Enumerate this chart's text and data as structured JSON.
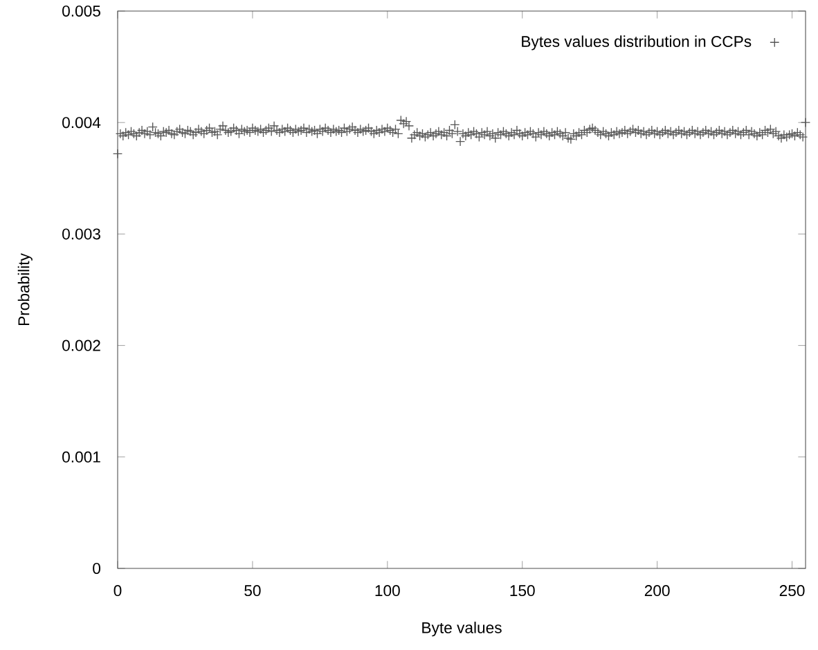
{
  "chart_data": {
    "type": "scatter",
    "xlabel": "Byte values",
    "ylabel": "Probability",
    "xlim": [
      0,
      255
    ],
    "ylim": [
      0,
      0.005
    ],
    "xticks": [
      0,
      50,
      100,
      150,
      200,
      250
    ],
    "yticks": [
      0,
      0.001,
      0.002,
      0.003,
      0.004,
      0.005
    ],
    "legend": "top right",
    "marker": "cross",
    "x": [
      0,
      1,
      2,
      3,
      4,
      5,
      6,
      7,
      8,
      9,
      10,
      11,
      12,
      13,
      14,
      15,
      16,
      17,
      18,
      19,
      20,
      21,
      22,
      23,
      24,
      25,
      26,
      27,
      28,
      29,
      30,
      31,
      32,
      33,
      34,
      35,
      36,
      37,
      38,
      39,
      40,
      41,
      42,
      43,
      44,
      45,
      46,
      47,
      48,
      49,
      50,
      51,
      52,
      53,
      54,
      55,
      56,
      57,
      58,
      59,
      60,
      61,
      62,
      63,
      64,
      65,
      66,
      67,
      68,
      69,
      70,
      71,
      72,
      73,
      74,
      75,
      76,
      77,
      78,
      79,
      80,
      81,
      82,
      83,
      84,
      85,
      86,
      87,
      88,
      89,
      90,
      91,
      92,
      93,
      94,
      95,
      96,
      97,
      98,
      99,
      100,
      101,
      102,
      103,
      104,
      105,
      106,
      107,
      108,
      109,
      110,
      111,
      112,
      113,
      114,
      115,
      116,
      117,
      118,
      119,
      120,
      121,
      122,
      123,
      124,
      125,
      126,
      127,
      128,
      129,
      130,
      131,
      132,
      133,
      134,
      135,
      136,
      137,
      138,
      139,
      140,
      141,
      142,
      143,
      144,
      145,
      146,
      147,
      148,
      149,
      150,
      151,
      152,
      153,
      154,
      155,
      156,
      157,
      158,
      159,
      160,
      161,
      162,
      163,
      164,
      165,
      166,
      167,
      168,
      169,
      170,
      171,
      172,
      173,
      174,
      175,
      176,
      177,
      178,
      179,
      180,
      181,
      182,
      183,
      184,
      185,
      186,
      187,
      188,
      189,
      190,
      191,
      192,
      193,
      194,
      195,
      196,
      197,
      198,
      199,
      200,
      201,
      202,
      203,
      204,
      205,
      206,
      207,
      208,
      209,
      210,
      211,
      212,
      213,
      214,
      215,
      216,
      217,
      218,
      219,
      220,
      221,
      222,
      223,
      224,
      225,
      226,
      227,
      228,
      229,
      230,
      231,
      232,
      233,
      234,
      235,
      236,
      237,
      238,
      239,
      240,
      241,
      242,
      243,
      244,
      245,
      246,
      247,
      248,
      249,
      250,
      251,
      252,
      253,
      254,
      255
    ],
    "series": [
      {
        "name": "Bytes values distribution in CCPs",
        "color": "#555555",
        "values": [
          0.00372,
          0.0039,
          0.00388,
          0.00391,
          0.00389,
          0.00392,
          0.0039,
          0.00388,
          0.00391,
          0.00393,
          0.0039,
          0.00392,
          0.00389,
          0.00396,
          0.00391,
          0.0039,
          0.00388,
          0.00392,
          0.00391,
          0.00393,
          0.0039,
          0.00389,
          0.00392,
          0.00394,
          0.00391,
          0.0039,
          0.00393,
          0.00392,
          0.00389,
          0.00391,
          0.00394,
          0.00392,
          0.0039,
          0.00393,
          0.00395,
          0.00391,
          0.00392,
          0.00389,
          0.00394,
          0.00397,
          0.00393,
          0.00391,
          0.00392,
          0.00395,
          0.00393,
          0.0039,
          0.00394,
          0.00392,
          0.00393,
          0.00391,
          0.00395,
          0.00393,
          0.00392,
          0.00394,
          0.00391,
          0.00393,
          0.00395,
          0.00392,
          0.00397,
          0.00393,
          0.00391,
          0.00394,
          0.00392,
          0.00395,
          0.00393,
          0.00391,
          0.00394,
          0.00392,
          0.00393,
          0.00395,
          0.00391,
          0.00394,
          0.00392,
          0.00393,
          0.0039,
          0.00394,
          0.00392,
          0.00395,
          0.00393,
          0.00391,
          0.00394,
          0.00392,
          0.00393,
          0.00391,
          0.00395,
          0.00392,
          0.00394,
          0.00396,
          0.00393,
          0.00391,
          0.00394,
          0.00392,
          0.00393,
          0.00395,
          0.00392,
          0.0039,
          0.00393,
          0.00391,
          0.00394,
          0.00392,
          0.00395,
          0.00393,
          0.00391,
          0.00394,
          0.0039,
          0.00402,
          0.00399,
          0.00401,
          0.00397,
          0.00386,
          0.00389,
          0.00391,
          0.00388,
          0.0039,
          0.00387,
          0.00389,
          0.00391,
          0.00388,
          0.0039,
          0.00392,
          0.00389,
          0.00391,
          0.00388,
          0.00393,
          0.0039,
          0.00398,
          0.00392,
          0.00383,
          0.0039,
          0.00388,
          0.00391,
          0.00389,
          0.00392,
          0.0039,
          0.00387,
          0.00391,
          0.00389,
          0.00392,
          0.00388,
          0.0039,
          0.00386,
          0.00391,
          0.00389,
          0.00392,
          0.0039,
          0.00388,
          0.00391,
          0.00389,
          0.00393,
          0.0039,
          0.00388,
          0.00391,
          0.00389,
          0.00392,
          0.0039,
          0.00387,
          0.00391,
          0.00389,
          0.00392,
          0.0039,
          0.00388,
          0.00391,
          0.00389,
          0.00392,
          0.0039,
          0.00388,
          0.00391,
          0.00386,
          0.00385,
          0.0039,
          0.00388,
          0.00391,
          0.00389,
          0.00393,
          0.00391,
          0.00394,
          0.00395,
          0.00393,
          0.00391,
          0.00389,
          0.00392,
          0.0039,
          0.00388,
          0.00391,
          0.00389,
          0.00392,
          0.0039,
          0.00391,
          0.00393,
          0.0039,
          0.00392,
          0.00394,
          0.00391,
          0.00393,
          0.0039,
          0.00392,
          0.00389,
          0.00391,
          0.00393,
          0.0039,
          0.00392,
          0.00389,
          0.00391,
          0.00393,
          0.0039,
          0.00392,
          0.00389,
          0.00391,
          0.00393,
          0.0039,
          0.00392,
          0.00389,
          0.00391,
          0.00393,
          0.0039,
          0.00392,
          0.00389,
          0.00391,
          0.00393,
          0.0039,
          0.00392,
          0.00389,
          0.00391,
          0.00393,
          0.0039,
          0.00392,
          0.00389,
          0.00391,
          0.00393,
          0.0039,
          0.00392,
          0.00389,
          0.00391,
          0.00393,
          0.00389,
          0.00392,
          0.0039,
          0.00388,
          0.00391,
          0.00389,
          0.00393,
          0.00391,
          0.00394,
          0.0039,
          0.00392,
          0.00388,
          0.00386,
          0.00389,
          0.00387,
          0.00389,
          0.0039,
          0.00388,
          0.00391,
          0.00389,
          0.00387,
          0.004
        ]
      }
    ]
  }
}
